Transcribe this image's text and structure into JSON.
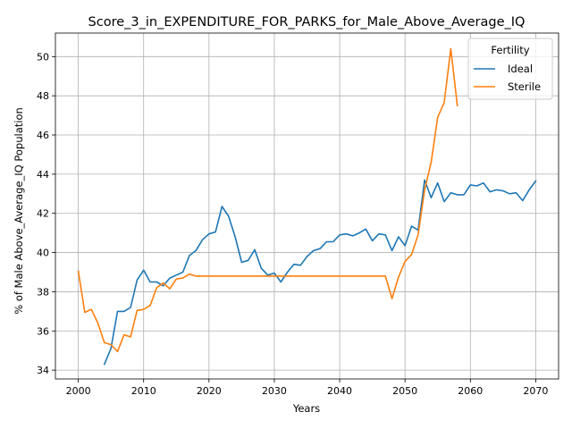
{
  "chart_data": {
    "type": "line",
    "title": "Score_3_in_EXPENDITURE_FOR_PARKS_for_Male_Above_Average_IQ",
    "xlabel": "Years",
    "ylabel": "% of Male Above_Average_IQ Population",
    "xlim": [
      1996.5,
      2073.5
    ],
    "ylim": [
      33.55,
      51.2
    ],
    "xticks": [
      2000,
      2010,
      2020,
      2030,
      2040,
      2050,
      2060,
      2070
    ],
    "yticks": [
      34,
      36,
      38,
      40,
      42,
      44,
      46,
      48,
      50
    ],
    "grid": true,
    "legend": {
      "title": "Fertility",
      "placement": "top-right"
    },
    "series": [
      {
        "name": "Ideal",
        "color": "#1f77b4",
        "x": [
          2004,
          2005,
          2006,
          2007,
          2008,
          2009,
          2010,
          2011,
          2012,
          2013,
          2014,
          2015,
          2016,
          2017,
          2018,
          2019,
          2020,
          2021,
          2022,
          2023,
          2024,
          2025,
          2026,
          2027,
          2028,
          2029,
          2030,
          2031,
          2032,
          2033,
          2034,
          2035,
          2036,
          2037,
          2038,
          2039,
          2040,
          2041,
          2042,
          2043,
          2044,
          2045,
          2046,
          2047,
          2048,
          2049,
          2050,
          2051,
          2052,
          2053,
          2054,
          2055,
          2056,
          2057,
          2058,
          2059,
          2060,
          2061,
          2062,
          2063,
          2064,
          2065,
          2066,
          2067,
          2068,
          2069,
          2070
        ],
        "y": [
          34.3,
          35.1,
          37.0,
          37.0,
          37.2,
          38.6,
          39.1,
          38.5,
          38.5,
          38.3,
          38.7,
          38.85,
          39.0,
          39.85,
          40.1,
          40.65,
          40.95,
          41.05,
          42.35,
          41.85,
          40.8,
          39.5,
          39.6,
          40.15,
          39.2,
          38.85,
          38.95,
          38.5,
          39.0,
          39.4,
          39.35,
          39.8,
          40.1,
          40.2,
          40.55,
          40.55,
          40.9,
          40.95,
          40.85,
          41.0,
          41.2,
          40.6,
          40.95,
          40.9,
          40.1,
          40.8,
          40.35,
          41.35,
          41.15,
          43.7,
          42.8,
          43.55,
          42.6,
          43.05,
          42.95,
          42.95,
          43.45,
          43.4,
          43.55,
          43.1,
          43.2,
          43.15,
          43.0,
          43.05,
          42.65,
          43.2,
          43.65
        ]
      },
      {
        "name": "Sterile",
        "color": "#ff7f0e",
        "x": [
          2000,
          2001,
          2002,
          2003,
          2004,
          2005,
          2006,
          2007,
          2008,
          2009,
          2010,
          2011,
          2012,
          2013,
          2014,
          2015,
          2016,
          2017,
          2018,
          2019,
          2020,
          2021,
          2022,
          2023,
          2024,
          2025,
          2026,
          2027,
          2028,
          2029,
          2030,
          2031,
          2032,
          2033,
          2034,
          2035,
          2036,
          2037,
          2038,
          2039,
          2040,
          2041,
          2042,
          2043,
          2044,
          2045,
          2046,
          2047,
          2048,
          2049,
          2050,
          2051,
          2052,
          2053,
          2054,
          2055,
          2056,
          2057,
          2058
        ],
        "y": [
          39.05,
          36.95,
          37.1,
          36.4,
          35.4,
          35.3,
          34.95,
          35.8,
          35.7,
          37.05,
          37.1,
          37.3,
          38.2,
          38.45,
          38.15,
          38.65,
          38.7,
          38.9,
          38.8,
          38.8,
          38.8,
          38.8,
          38.8,
          38.8,
          38.8,
          38.8,
          38.8,
          38.8,
          38.8,
          38.8,
          38.8,
          38.8,
          38.8,
          38.8,
          38.8,
          38.8,
          38.8,
          38.8,
          38.8,
          38.8,
          38.8,
          38.8,
          38.8,
          38.8,
          38.8,
          38.8,
          38.8,
          38.8,
          37.65,
          38.75,
          39.55,
          39.9,
          40.9,
          43.2,
          44.6,
          46.9,
          47.65,
          50.4,
          47.5
        ]
      }
    ]
  }
}
